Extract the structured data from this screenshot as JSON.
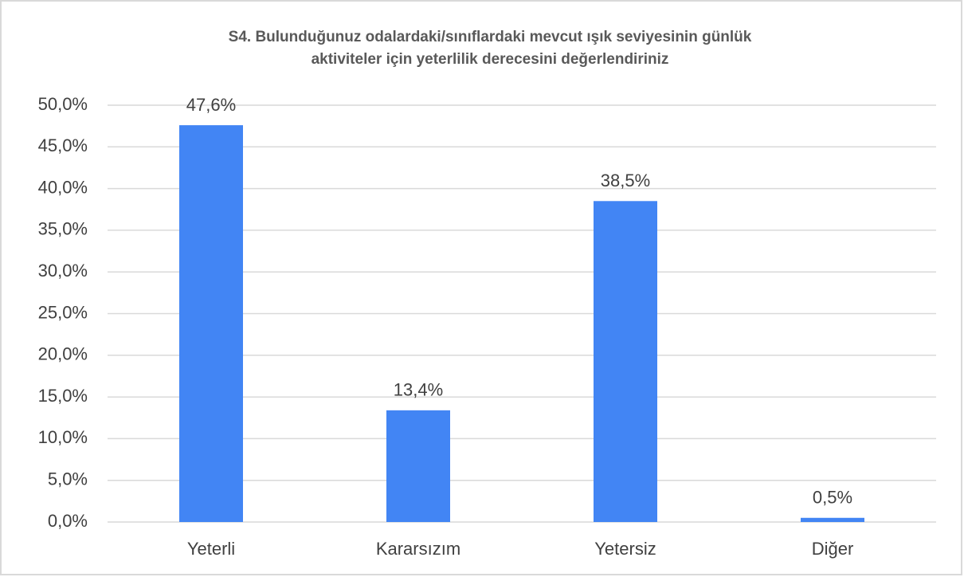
{
  "chart_data": {
    "type": "bar",
    "title": [
      "S4. Bulunduğunuz odalardaki/sınıflardaki  mevcut ışık seviyesinin  günlük",
      "aktiviteler için yeterlilik derecesini değerlendiriniz"
    ],
    "categories": [
      "Yeterli",
      "Kararsızım",
      "Yetersiz",
      "Diğer"
    ],
    "values": [
      47.6,
      13.4,
      38.5,
      0.5
    ],
    "value_labels": [
      "47,6%",
      "13,4%",
      "38,5%",
      "0,5%"
    ],
    "color": "#4285f4",
    "ylim": [
      0,
      50
    ],
    "yticks": [
      {
        "value": 0,
        "label": "0,0%"
      },
      {
        "value": 5,
        "label": "5,0%"
      },
      {
        "value": 10,
        "label": "10,0%"
      },
      {
        "value": 15,
        "label": "15,0%"
      },
      {
        "value": 20,
        "label": "20,0%"
      },
      {
        "value": 25,
        "label": "25,0%"
      },
      {
        "value": 30,
        "label": "30,0%"
      },
      {
        "value": 35,
        "label": "35,0%"
      },
      {
        "value": 40,
        "label": "40,0%"
      },
      {
        "value": 45,
        "label": "45,0%"
      },
      {
        "value": 50,
        "label": "50,0%"
      }
    ],
    "grid": true
  }
}
